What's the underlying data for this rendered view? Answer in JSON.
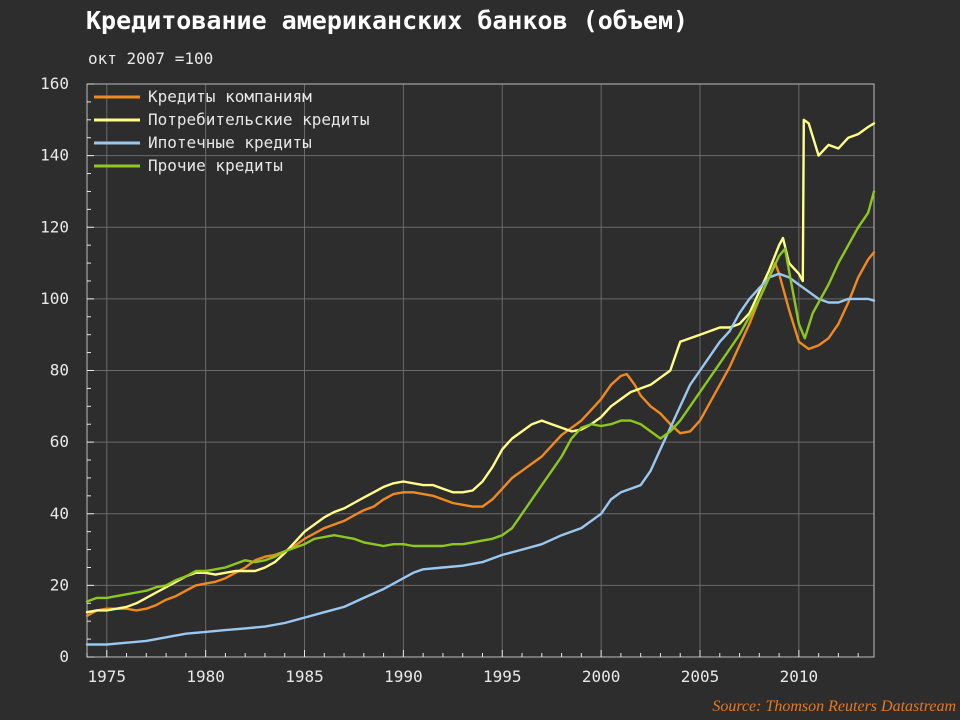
{
  "chart_data": {
    "type": "line",
    "title": "Кредитование американских банков (объем)",
    "subtitle": "окт 2007 =100",
    "source": "Source: Thomson Reuters Datastream",
    "ylim": [
      0,
      160
    ],
    "yticks": [
      0,
      20,
      40,
      60,
      80,
      100,
      120,
      140,
      160
    ],
    "xlim": [
      1974,
      2013.8
    ],
    "xticks": [
      1975,
      1980,
      1985,
      1990,
      1995,
      2000,
      2005,
      2010
    ],
    "grid": true,
    "legend_position": "top-left",
    "series": [
      {
        "name": "Кредиты компаниям",
        "color": "#f08a1e",
        "points": [
          [
            1974,
            11.5
          ],
          [
            1974.5,
            13
          ],
          [
            1975,
            13.5
          ],
          [
            1975.5,
            13.5
          ],
          [
            1976,
            13.5
          ],
          [
            1976.5,
            13
          ],
          [
            1977,
            13.5
          ],
          [
            1977.5,
            14.5
          ],
          [
            1978,
            16
          ],
          [
            1978.5,
            17
          ],
          [
            1979,
            18.5
          ],
          [
            1979.5,
            20
          ],
          [
            1980,
            20.5
          ],
          [
            1980.5,
            21
          ],
          [
            1981,
            22
          ],
          [
            1981.5,
            23.5
          ],
          [
            1982,
            25
          ],
          [
            1982.5,
            27
          ],
          [
            1983,
            28
          ],
          [
            1983.5,
            28.5
          ],
          [
            1984,
            29.5
          ],
          [
            1984.5,
            31
          ],
          [
            1985,
            33
          ],
          [
            1985.5,
            34.5
          ],
          [
            1986,
            36
          ],
          [
            1986.5,
            37
          ],
          [
            1987,
            38
          ],
          [
            1987.5,
            39.5
          ],
          [
            1988,
            41
          ],
          [
            1988.5,
            42
          ],
          [
            1989,
            44
          ],
          [
            1989.5,
            45.5
          ],
          [
            1990,
            46
          ],
          [
            1990.5,
            46
          ],
          [
            1991,
            45.5
          ],
          [
            1991.5,
            45
          ],
          [
            1992,
            44
          ],
          [
            1992.5,
            43
          ],
          [
            1993,
            42.5
          ],
          [
            1993.5,
            42
          ],
          [
            1994,
            42
          ],
          [
            1994.5,
            44
          ],
          [
            1995,
            47
          ],
          [
            1995.5,
            50
          ],
          [
            1996,
            52
          ],
          [
            1996.5,
            54
          ],
          [
            1997,
            56
          ],
          [
            1997.5,
            59
          ],
          [
            1998,
            62
          ],
          [
            1998.5,
            64
          ],
          [
            1999,
            66
          ],
          [
            1999.5,
            69
          ],
          [
            2000,
            72
          ],
          [
            2000.5,
            76
          ],
          [
            2001,
            78.5
          ],
          [
            2001.3,
            79
          ],
          [
            2001.7,
            76
          ],
          [
            2002,
            73
          ],
          [
            2002.5,
            70
          ],
          [
            2003,
            68
          ],
          [
            2003.5,
            65
          ],
          [
            2004,
            62.5
          ],
          [
            2004.5,
            63
          ],
          [
            2005,
            66
          ],
          [
            2005.5,
            71
          ],
          [
            2006,
            76
          ],
          [
            2006.5,
            81
          ],
          [
            2007,
            87
          ],
          [
            2007.5,
            93
          ],
          [
            2008,
            100
          ],
          [
            2008.5,
            106
          ],
          [
            2008.8,
            110
          ],
          [
            2009,
            107
          ],
          [
            2009.5,
            97
          ],
          [
            2010,
            88
          ],
          [
            2010.5,
            86
          ],
          [
            2011,
            87
          ],
          [
            2011.5,
            89
          ],
          [
            2012,
            93
          ],
          [
            2012.5,
            99
          ],
          [
            2013,
            106
          ],
          [
            2013.5,
            111
          ],
          [
            2013.8,
            113
          ]
        ]
      },
      {
        "name": "Потребительские кредиты",
        "color": "#ffff8a",
        "points": [
          [
            1974,
            12.5
          ],
          [
            1974.5,
            13
          ],
          [
            1975,
            13
          ],
          [
            1975.5,
            13.5
          ],
          [
            1976,
            14
          ],
          [
            1976.5,
            15
          ],
          [
            1977,
            16.5
          ],
          [
            1977.5,
            18
          ],
          [
            1978,
            19.5
          ],
          [
            1978.5,
            21
          ],
          [
            1979,
            22.5
          ],
          [
            1979.5,
            23.5
          ],
          [
            1980,
            23.5
          ],
          [
            1980.5,
            23
          ],
          [
            1981,
            23.5
          ],
          [
            1981.5,
            24
          ],
          [
            1982,
            24
          ],
          [
            1982.5,
            24
          ],
          [
            1983,
            25
          ],
          [
            1983.5,
            26.5
          ],
          [
            1984,
            29
          ],
          [
            1984.5,
            32
          ],
          [
            1985,
            35
          ],
          [
            1985.5,
            37
          ],
          [
            1986,
            39
          ],
          [
            1986.5,
            40.5
          ],
          [
            1987,
            41.5
          ],
          [
            1987.5,
            43
          ],
          [
            1988,
            44.5
          ],
          [
            1988.5,
            46
          ],
          [
            1989,
            47.5
          ],
          [
            1989.5,
            48.5
          ],
          [
            1990,
            49
          ],
          [
            1990.5,
            48.5
          ],
          [
            1991,
            48
          ],
          [
            1991.5,
            48
          ],
          [
            1992,
            47
          ],
          [
            1992.5,
            46
          ],
          [
            1993,
            46
          ],
          [
            1993.5,
            46.5
          ],
          [
            1994,
            49
          ],
          [
            1994.5,
            53
          ],
          [
            1995,
            58
          ],
          [
            1995.5,
            61
          ],
          [
            1996,
            63
          ],
          [
            1996.5,
            65
          ],
          [
            1997,
            66
          ],
          [
            1997.5,
            65
          ],
          [
            1998,
            64
          ],
          [
            1998.5,
            63
          ],
          [
            1999,
            63.5
          ],
          [
            1999.5,
            65
          ],
          [
            2000,
            67
          ],
          [
            2000.5,
            70
          ],
          [
            2001,
            72
          ],
          [
            2001.5,
            74
          ],
          [
            2002,
            75
          ],
          [
            2002.5,
            76
          ],
          [
            2003,
            78
          ],
          [
            2003.5,
            80
          ],
          [
            2004,
            88
          ],
          [
            2004.5,
            89
          ],
          [
            2005,
            90
          ],
          [
            2005.5,
            91
          ],
          [
            2006,
            92
          ],
          [
            2006.5,
            92
          ],
          [
            2007,
            93
          ],
          [
            2007.5,
            96
          ],
          [
            2008,
            102
          ],
          [
            2008.5,
            108
          ],
          [
            2009,
            115
          ],
          [
            2009.2,
            117
          ],
          [
            2009.5,
            110
          ],
          [
            2010,
            107
          ],
          [
            2010.2,
            105
          ],
          [
            2010.25,
            150
          ],
          [
            2010.5,
            149
          ],
          [
            2011,
            140
          ],
          [
            2011.5,
            143
          ],
          [
            2012,
            142
          ],
          [
            2012.5,
            145
          ],
          [
            2013,
            146
          ],
          [
            2013.5,
            148
          ],
          [
            2013.8,
            149
          ]
        ]
      },
      {
        "name": "Ипотечные кредиты",
        "color": "#9ac8f0",
        "points": [
          [
            1974,
            3.5
          ],
          [
            1975,
            3.5
          ],
          [
            1976,
            4
          ],
          [
            1977,
            4.5
          ],
          [
            1978,
            5.5
          ],
          [
            1979,
            6.5
          ],
          [
            1980,
            7
          ],
          [
            1981,
            7.5
          ],
          [
            1982,
            8
          ],
          [
            1983,
            8.5
          ],
          [
            1984,
            9.5
          ],
          [
            1985,
            11
          ],
          [
            1986,
            12.5
          ],
          [
            1987,
            14
          ],
          [
            1988,
            16.5
          ],
          [
            1989,
            19
          ],
          [
            1990,
            22
          ],
          [
            1990.5,
            23.5
          ],
          [
            1991,
            24.5
          ],
          [
            1992,
            25
          ],
          [
            1993,
            25.5
          ],
          [
            1994,
            26.5
          ],
          [
            1995,
            28.5
          ],
          [
            1996,
            30
          ],
          [
            1997,
            31.5
          ],
          [
            1998,
            34
          ],
          [
            1999,
            36
          ],
          [
            2000,
            40
          ],
          [
            2000.5,
            44
          ],
          [
            2001,
            46
          ],
          [
            2001.5,
            47
          ],
          [
            2002,
            48
          ],
          [
            2002.5,
            52
          ],
          [
            2003,
            58
          ],
          [
            2003.5,
            64
          ],
          [
            2004,
            70
          ],
          [
            2004.5,
            76
          ],
          [
            2005,
            80
          ],
          [
            2005.5,
            84
          ],
          [
            2006,
            88
          ],
          [
            2006.5,
            91
          ],
          [
            2007,
            96
          ],
          [
            2007.5,
            100
          ],
          [
            2008,
            103
          ],
          [
            2008.5,
            106
          ],
          [
            2009,
            107
          ],
          [
            2009.5,
            106
          ],
          [
            2010,
            104
          ],
          [
            2010.5,
            102
          ],
          [
            2011,
            100
          ],
          [
            2011.5,
            99
          ],
          [
            2012,
            99
          ],
          [
            2012.5,
            100
          ],
          [
            2013,
            100
          ],
          [
            2013.5,
            100
          ],
          [
            2013.8,
            99.5
          ]
        ]
      },
      {
        "name": "Прочие кредиты",
        "color": "#8ec81e",
        "points": [
          [
            1974,
            15.5
          ],
          [
            1974.5,
            16.5
          ],
          [
            1975,
            16.5
          ],
          [
            1975.5,
            17
          ],
          [
            1976,
            17.5
          ],
          [
            1976.5,
            18
          ],
          [
            1977,
            18.5
          ],
          [
            1977.5,
            19.5
          ],
          [
            1978,
            20
          ],
          [
            1978.5,
            21.5
          ],
          [
            1979,
            22.5
          ],
          [
            1979.5,
            24
          ],
          [
            1980,
            24
          ],
          [
            1980.5,
            24.5
          ],
          [
            1981,
            25
          ],
          [
            1981.5,
            26
          ],
          [
            1982,
            27
          ],
          [
            1982.5,
            26.5
          ],
          [
            1983,
            27
          ],
          [
            1983.5,
            28
          ],
          [
            1984,
            29.5
          ],
          [
            1984.5,
            30.5
          ],
          [
            1985,
            31.5
          ],
          [
            1985.5,
            33
          ],
          [
            1986,
            33.5
          ],
          [
            1986.5,
            34
          ],
          [
            1987,
            33.5
          ],
          [
            1987.5,
            33
          ],
          [
            1988,
            32
          ],
          [
            1988.5,
            31.5
          ],
          [
            1989,
            31
          ],
          [
            1989.5,
            31.5
          ],
          [
            1990,
            31.5
          ],
          [
            1990.5,
            31
          ],
          [
            1991,
            31
          ],
          [
            1991.5,
            31
          ],
          [
            1992,
            31
          ],
          [
            1992.5,
            31.5
          ],
          [
            1993,
            31.5
          ],
          [
            1993.5,
            32
          ],
          [
            1994,
            32.5
          ],
          [
            1994.5,
            33
          ],
          [
            1995,
            34
          ],
          [
            1995.5,
            36
          ],
          [
            1996,
            40
          ],
          [
            1996.5,
            44
          ],
          [
            1997,
            48
          ],
          [
            1997.5,
            52
          ],
          [
            1998,
            56
          ],
          [
            1998.5,
            61
          ],
          [
            1999,
            64
          ],
          [
            1999.5,
            65
          ],
          [
            2000,
            64.5
          ],
          [
            2000.5,
            65
          ],
          [
            2001,
            66
          ],
          [
            2001.5,
            66
          ],
          [
            2002,
            65
          ],
          [
            2002.5,
            63
          ],
          [
            2003,
            61
          ],
          [
            2003.5,
            63
          ],
          [
            2004,
            66
          ],
          [
            2004.5,
            70
          ],
          [
            2005,
            74
          ],
          [
            2005.5,
            78
          ],
          [
            2006,
            82
          ],
          [
            2006.5,
            86
          ],
          [
            2007,
            90
          ],
          [
            2007.5,
            95
          ],
          [
            2008,
            100
          ],
          [
            2008.5,
            106
          ],
          [
            2009,
            112
          ],
          [
            2009.3,
            114
          ],
          [
            2009.6,
            105
          ],
          [
            2010,
            93
          ],
          [
            2010.3,
            89
          ],
          [
            2010.7,
            96
          ],
          [
            2011,
            99
          ],
          [
            2011.5,
            104
          ],
          [
            2012,
            110
          ],
          [
            2012.5,
            115
          ],
          [
            2013,
            120
          ],
          [
            2013.5,
            124
          ],
          [
            2013.8,
            130
          ]
        ]
      }
    ]
  }
}
